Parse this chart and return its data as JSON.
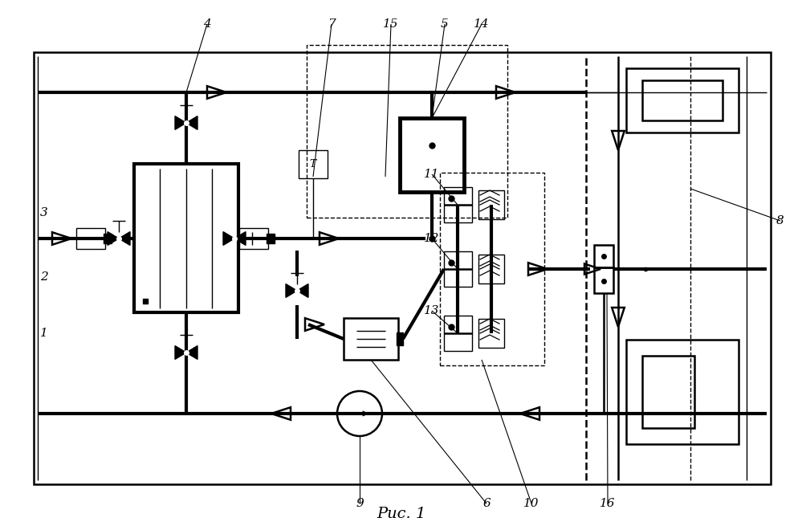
{
  "title": "Рис. 1",
  "bg": "#ffffff",
  "lc": "#000000",
  "lw1": 1.0,
  "lw2": 1.8,
  "lw3": 3.0
}
